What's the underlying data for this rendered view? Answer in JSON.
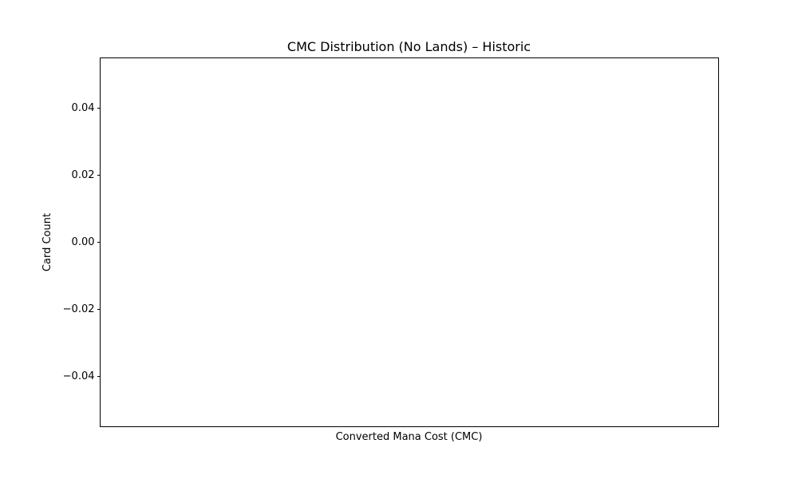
{
  "chart_data": {
    "type": "bar",
    "title": "CMC Distribution (No Lands) – Historic",
    "xlabel": "Converted Mana Cost (CMC)",
    "ylabel": "Card Count",
    "categories": [],
    "values": [],
    "ylim": [
      -0.055,
      0.055
    ],
    "y_ticks": [
      0.04,
      0.02,
      0.0,
      -0.02,
      -0.04
    ],
    "y_tick_labels": [
      "0.04",
      "0.02",
      "0.00",
      "−0.02",
      "−0.04"
    ],
    "x_ticks": [],
    "grid": false,
    "legend": "none"
  }
}
